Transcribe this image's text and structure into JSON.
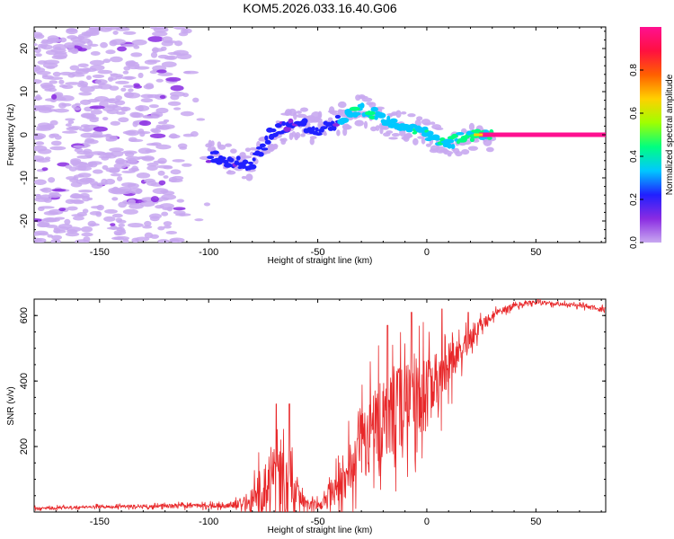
{
  "title": "KOM5.2026.033.16.40.G06",
  "chart_data": [
    {
      "type": "heatmap",
      "name": "spectrogram",
      "xlabel": "Height of straight line (km)",
      "ylabel": "Frequency (Hz)",
      "xlim": [
        -180,
        82
      ],
      "ylim": [
        -25,
        25
      ],
      "xticks": [
        -150,
        -100,
        -50,
        0,
        50
      ],
      "yticks": [
        -20,
        -10,
        0,
        10,
        20
      ],
      "colorbar": {
        "label": "Normalized spectral amplitude",
        "range": [
          0,
          1
        ],
        "ticks": [
          0.0,
          0.2,
          0.4,
          0.6,
          0.8
        ],
        "colors": [
          "#c8a8f0",
          "#8a2be2",
          "#2020ff",
          "#00c8ff",
          "#00ff80",
          "#a0ff00",
          "#ffd000",
          "#ff6000",
          "#ff1040",
          "#ff1090"
        ]
      },
      "ridge": {
        "description": "dominant Doppler frequency track",
        "x": [
          -100,
          -90,
          -80,
          -72,
          -65,
          -58,
          -52,
          -45,
          -38,
          -32,
          -25,
          -18,
          -10,
          -5,
          0,
          5,
          10,
          15,
          20,
          25,
          30,
          82
        ],
        "y": [
          -5,
          -6,
          -7,
          0,
          2,
          3,
          1,
          2,
          4,
          6,
          5,
          3,
          2,
          1,
          0,
          -1,
          -2,
          -1,
          -0.5,
          0,
          0,
          0
        ]
      },
      "noise_region_km": [
        -180,
        -100
      ]
    },
    {
      "type": "line",
      "name": "snr",
      "xlabel": "Height of straight line (km)",
      "ylabel": "SNR (v/v)",
      "xlim": [
        -180,
        82
      ],
      "ylim": [
        0,
        650
      ],
      "xticks": [
        -150,
        -100,
        -50,
        0,
        50
      ],
      "yticks": [
        200,
        400,
        600
      ],
      "color": "#e8282a",
      "envelope": {
        "x": [
          -180,
          -130,
          -90,
          -85,
          -80,
          -75,
          -70,
          -65,
          -60,
          -55,
          -50,
          -45,
          -40,
          -35,
          -30,
          -25,
          -20,
          -15,
          -10,
          -5,
          0,
          5,
          10,
          15,
          20,
          25,
          30,
          40,
          50,
          60,
          70,
          82
        ],
        "base": [
          12,
          18,
          20,
          25,
          40,
          60,
          80,
          70,
          40,
          25,
          20,
          40,
          90,
          140,
          200,
          240,
          270,
          300,
          320,
          340,
          360,
          400,
          440,
          480,
          530,
          570,
          600,
          630,
          640,
          635,
          630,
          620
        ],
        "amplitude": [
          8,
          10,
          15,
          30,
          80,
          180,
          220,
          220,
          150,
          40,
          30,
          60,
          120,
          160,
          220,
          250,
          280,
          280,
          260,
          240,
          220,
          180,
          140,
          100,
          60,
          40,
          25,
          15,
          12,
          12,
          12,
          12
        ]
      },
      "peaks": [
        {
          "x": -63,
          "y": 330
        },
        {
          "x": -69,
          "y": 330
        },
        {
          "x": -18,
          "y": 570
        },
        {
          "x": -7,
          "y": 610
        },
        {
          "x": 7,
          "y": 620
        },
        {
          "x": 19,
          "y": 610
        }
      ]
    }
  ]
}
